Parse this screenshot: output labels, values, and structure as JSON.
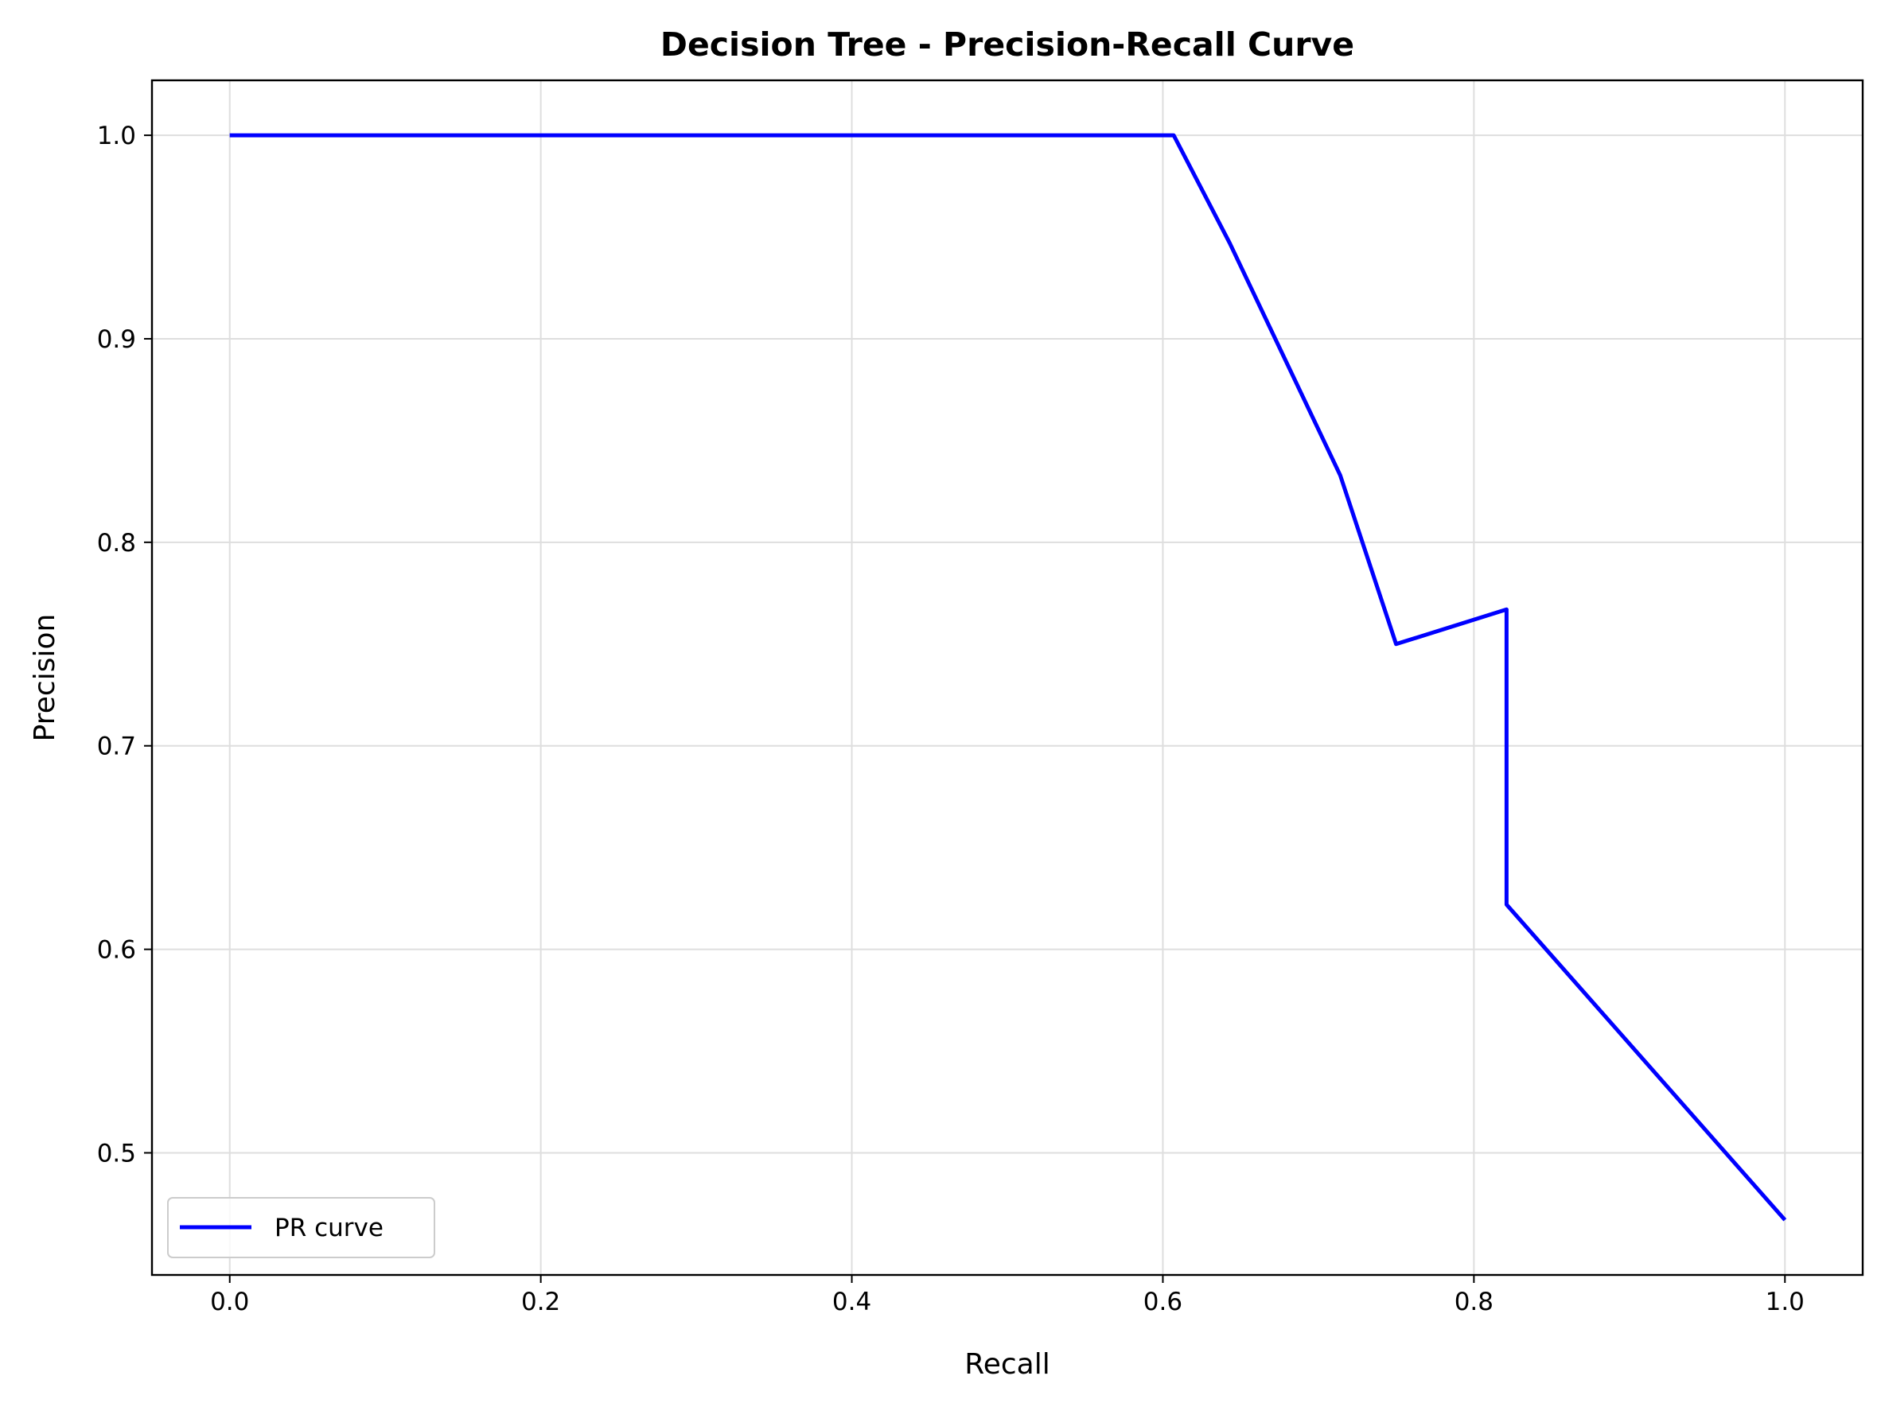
{
  "chart_data": {
    "type": "line",
    "title": "Decision Tree - Precision-Recall Curve",
    "xlabel": "Recall",
    "ylabel": "Precision",
    "xlim": [
      -0.05,
      1.05
    ],
    "ylim": [
      0.44,
      1.027
    ],
    "xticks": [
      0.0,
      0.2,
      0.4,
      0.6,
      0.8,
      1.0
    ],
    "xtick_labels": [
      "0.0",
      "0.2",
      "0.4",
      "0.6",
      "0.8",
      "1.0"
    ],
    "yticks": [
      0.5,
      0.6,
      0.7,
      0.8,
      0.9,
      1.0
    ],
    "ytick_labels": [
      "0.5",
      "0.6",
      "0.7",
      "0.8",
      "0.9",
      "1.0"
    ],
    "grid": true,
    "legend_position": "lower-left",
    "series": [
      {
        "name": "PR curve",
        "color": "#0000ff",
        "x": [
          0.0,
          0.607,
          0.643,
          0.714,
          0.75,
          0.821,
          0.821,
          1.0
        ],
        "y": [
          1.0,
          1.0,
          0.947,
          0.833,
          0.75,
          0.767,
          0.622,
          0.467
        ]
      }
    ]
  }
}
